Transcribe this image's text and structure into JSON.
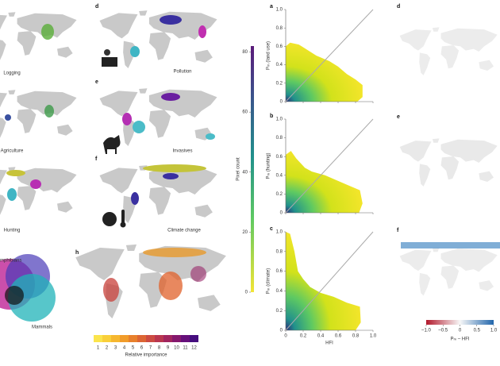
{
  "map_panels": [
    {
      "caption": "Logging"
    },
    {
      "caption": "Agriculture"
    },
    {
      "caption": "Hunting"
    },
    {
      "label": "d",
      "caption": "Pollution"
    },
    {
      "label": "e",
      "caption": "Invasives"
    },
    {
      "label": "f",
      "caption": "Climate change"
    }
  ],
  "venn": {
    "labels": [
      "mphibians",
      "Mammals"
    ]
  },
  "importance_map": {
    "label": "h",
    "colorbar_label": "Relative importance",
    "colorbar_ticks": [
      1,
      2,
      3,
      4,
      5,
      6,
      7,
      8,
      9,
      10,
      11,
      12
    ]
  },
  "pixel_colorbar": {
    "label": "Pixel count",
    "ylim": [
      0,
      82
    ],
    "yticks": [
      0,
      20,
      40,
      60,
      80
    ]
  },
  "density_plots": {
    "panels": [
      {
        "label": "a",
        "ylabel": "Pₘ (land use)"
      },
      {
        "label": "b",
        "ylabel": "Pₘ (hunting)"
      },
      {
        "label": "c",
        "ylabel": "Pₘ (climate)"
      }
    ],
    "xlabel": "HFI",
    "xlim": [
      0,
      1
    ],
    "ylim": [
      0,
      1
    ],
    "xticks": [
      0,
      0.2,
      0.4,
      0.6,
      0.8,
      {
        "value": 1,
        "label": "1.0"
      }
    ],
    "yticks": [
      0,
      0.2,
      0.4,
      0.6,
      0.8,
      {
        "value": 1,
        "label": "1.0"
      }
    ]
  },
  "difference_maps": {
    "labels": [
      "d",
      "e",
      "f"
    ],
    "colorbar_label": "Pₘ – HFI",
    "xlim": [
      -1,
      1
    ],
    "colorbar_ticks": [
      {
        "value": -1,
        "label": "–1.0"
      },
      {
        "value": -0.5,
        "label": "–0.5"
      },
      0,
      0.5,
      {
        "value": 1,
        "label": "1.0"
      }
    ]
  }
}
